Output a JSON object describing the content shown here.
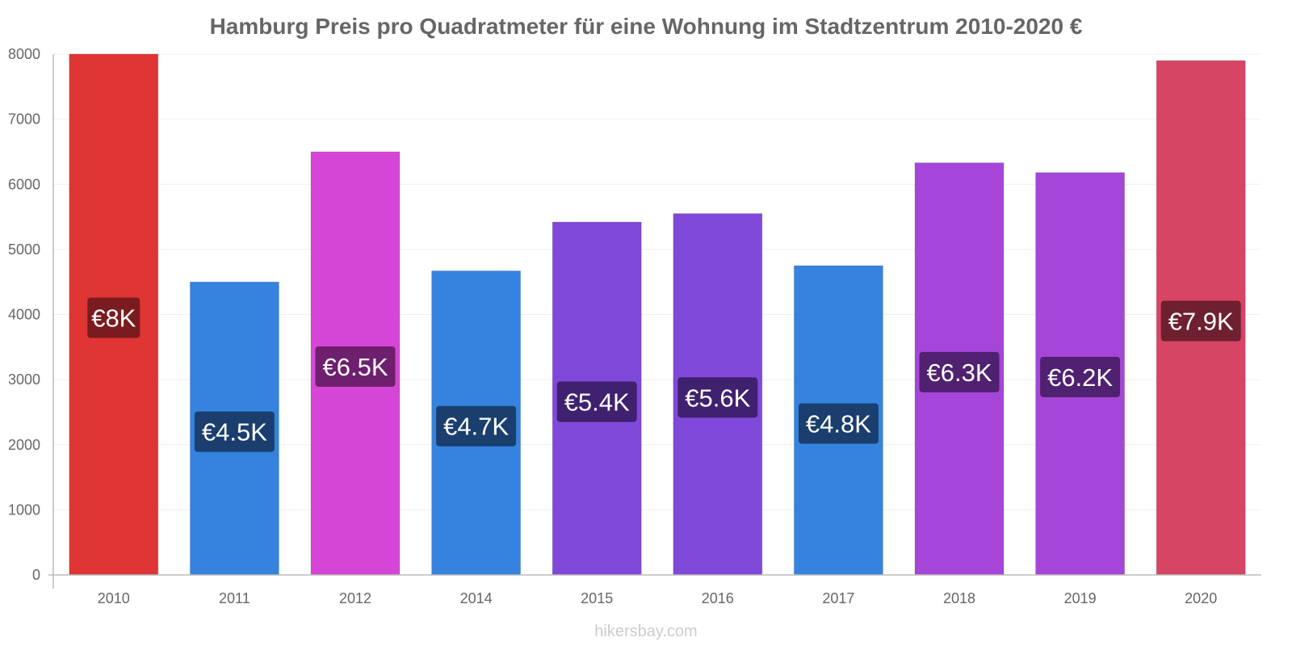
{
  "chart_data": {
    "type": "bar",
    "title": "Hamburg Preis pro Quadratmeter für eine Wohnung im Stadtzentrum 2010-2020 €",
    "categories": [
      "2010",
      "2011",
      "2012",
      "2014",
      "2015",
      "2016",
      "2017",
      "2018",
      "2019",
      "2020"
    ],
    "values": [
      8000,
      4500,
      6500,
      4670,
      5420,
      5550,
      4750,
      6330,
      6180,
      7900
    ],
    "data_labels": [
      "€8K",
      "€4.5K",
      "€6.5K",
      "€4.7K",
      "€5.4K",
      "€5.6K",
      "€4.8K",
      "€6.3K",
      "€6.2K",
      "€7.9K"
    ],
    "bar_colors": [
      "#e03535",
      "#3583de",
      "#d646d6",
      "#3583de",
      "#8048d9",
      "#8048d9",
      "#3583de",
      "#a646d9",
      "#a646d9",
      "#d64563"
    ],
    "label_colors": [
      "#7a1c1f",
      "#1a3f6e",
      "#6e1f6e",
      "#1a3f6e",
      "#3f2170",
      "#3f2170",
      "#1a3f6e",
      "#4f2170",
      "#4f2170",
      "#6e1f30"
    ],
    "ylim": [
      0,
      8000
    ],
    "yticks": [
      0,
      1000,
      2000,
      3000,
      4000,
      5000,
      6000,
      7000,
      8000
    ],
    "xlabel": "",
    "ylabel": "",
    "grid": true,
    "legend": "none"
  },
  "watermark": "hikersbay.com"
}
